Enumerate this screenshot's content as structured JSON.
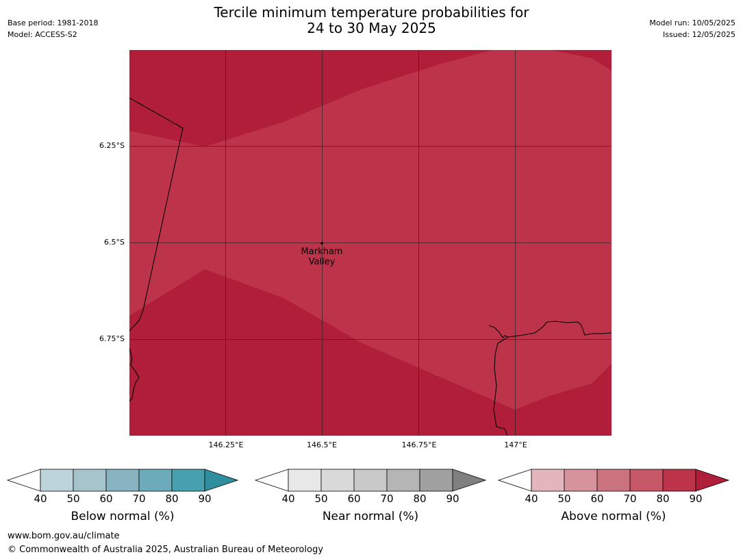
{
  "title": {
    "line1": "Tercile minimum temperature probabilities for",
    "line2": "24 to 30 May 2025"
  },
  "meta_left": {
    "base_period": "Base period: 1981-2018",
    "model": "Model: ACCESS-S2"
  },
  "meta_right": {
    "model_run": "Model run: 10/05/2025",
    "issued": "Issued: 12/05/2025"
  },
  "map": {
    "lat_labels": [
      "6.25°S",
      "6.5°S",
      "6.75°S"
    ],
    "lon_labels": [
      "146.25°E",
      "146.5°E",
      "146.75°E",
      "147°E"
    ],
    "place": {
      "line1": "Markham",
      "line2": "Valley"
    },
    "colors": {
      "above_90": "#b01e39",
      "above_80": "#bd3349"
    }
  },
  "colorbars": [
    {
      "title": "Below normal (%)",
      "ticks": [
        "40",
        "50",
        "60",
        "70",
        "80",
        "90"
      ],
      "colors": [
        "#bdd4da",
        "#a6c4cb",
        "#88b4c1",
        "#6babba",
        "#47a0ad",
        "#2f8f9e"
      ]
    },
    {
      "title": "Near normal (%)",
      "ticks": [
        "40",
        "50",
        "60",
        "70",
        "80",
        "90"
      ],
      "colors": [
        "#e8e8e8",
        "#d9d9d9",
        "#c9c9c9",
        "#b5b5b5",
        "#a0a0a0",
        "#808080"
      ]
    },
    {
      "title": "Above normal (%)",
      "ticks": [
        "40",
        "50",
        "60",
        "70",
        "80",
        "90"
      ],
      "colors": [
        "#e2b6bc",
        "#d6939c",
        "#cb7480",
        "#c55766",
        "#bd3349",
        "#b01e39"
      ]
    }
  ],
  "footer": {
    "url": "www.bom.gov.au/climate",
    "copyright": "© Commonwealth of Australia 2025, Australian Bureau of Meteorology"
  }
}
